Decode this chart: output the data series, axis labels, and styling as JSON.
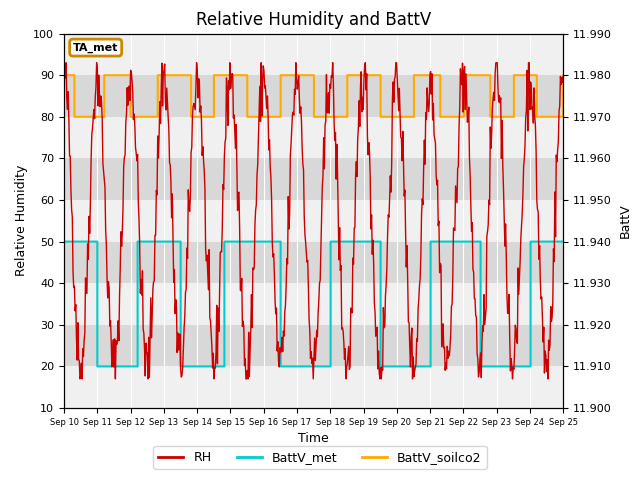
{
  "title": "Relative Humidity and BattV",
  "xlabel": "Time",
  "ylabel_left": "Relative Humidity",
  "ylabel_right": "BattV",
  "ylim_left": [
    10,
    100
  ],
  "ylim_right": [
    11.9,
    11.99
  ],
  "xlim": [
    0,
    15
  ],
  "x_tick_labels": [
    "Sep 10",
    "Sep 11",
    "Sep 12",
    "Sep 13",
    "Sep 14",
    "Sep 15",
    "Sep 16",
    "Sep 17",
    "Sep 18",
    "Sep 19",
    "Sep 20",
    "Sep 21",
    "Sep 22",
    "Sep 23",
    "Sep 24",
    "Sep 25"
  ],
  "annotation_text": "TA_met",
  "annotation_edge_color": "#cc8800",
  "background_color": "#ffffff",
  "plot_bg_color": "#d8d8d8",
  "band_light_color": "#f0f0f0",
  "rh_color": "#cc0000",
  "battv_met_color": "#00cccc",
  "battv_soilco2_color": "#ffaa00",
  "legend_labels": [
    "RH",
    "BattV_met",
    "BattV_soilco2"
  ],
  "title_fontsize": 12,
  "axis_label_fontsize": 9,
  "tick_fontsize": 8
}
